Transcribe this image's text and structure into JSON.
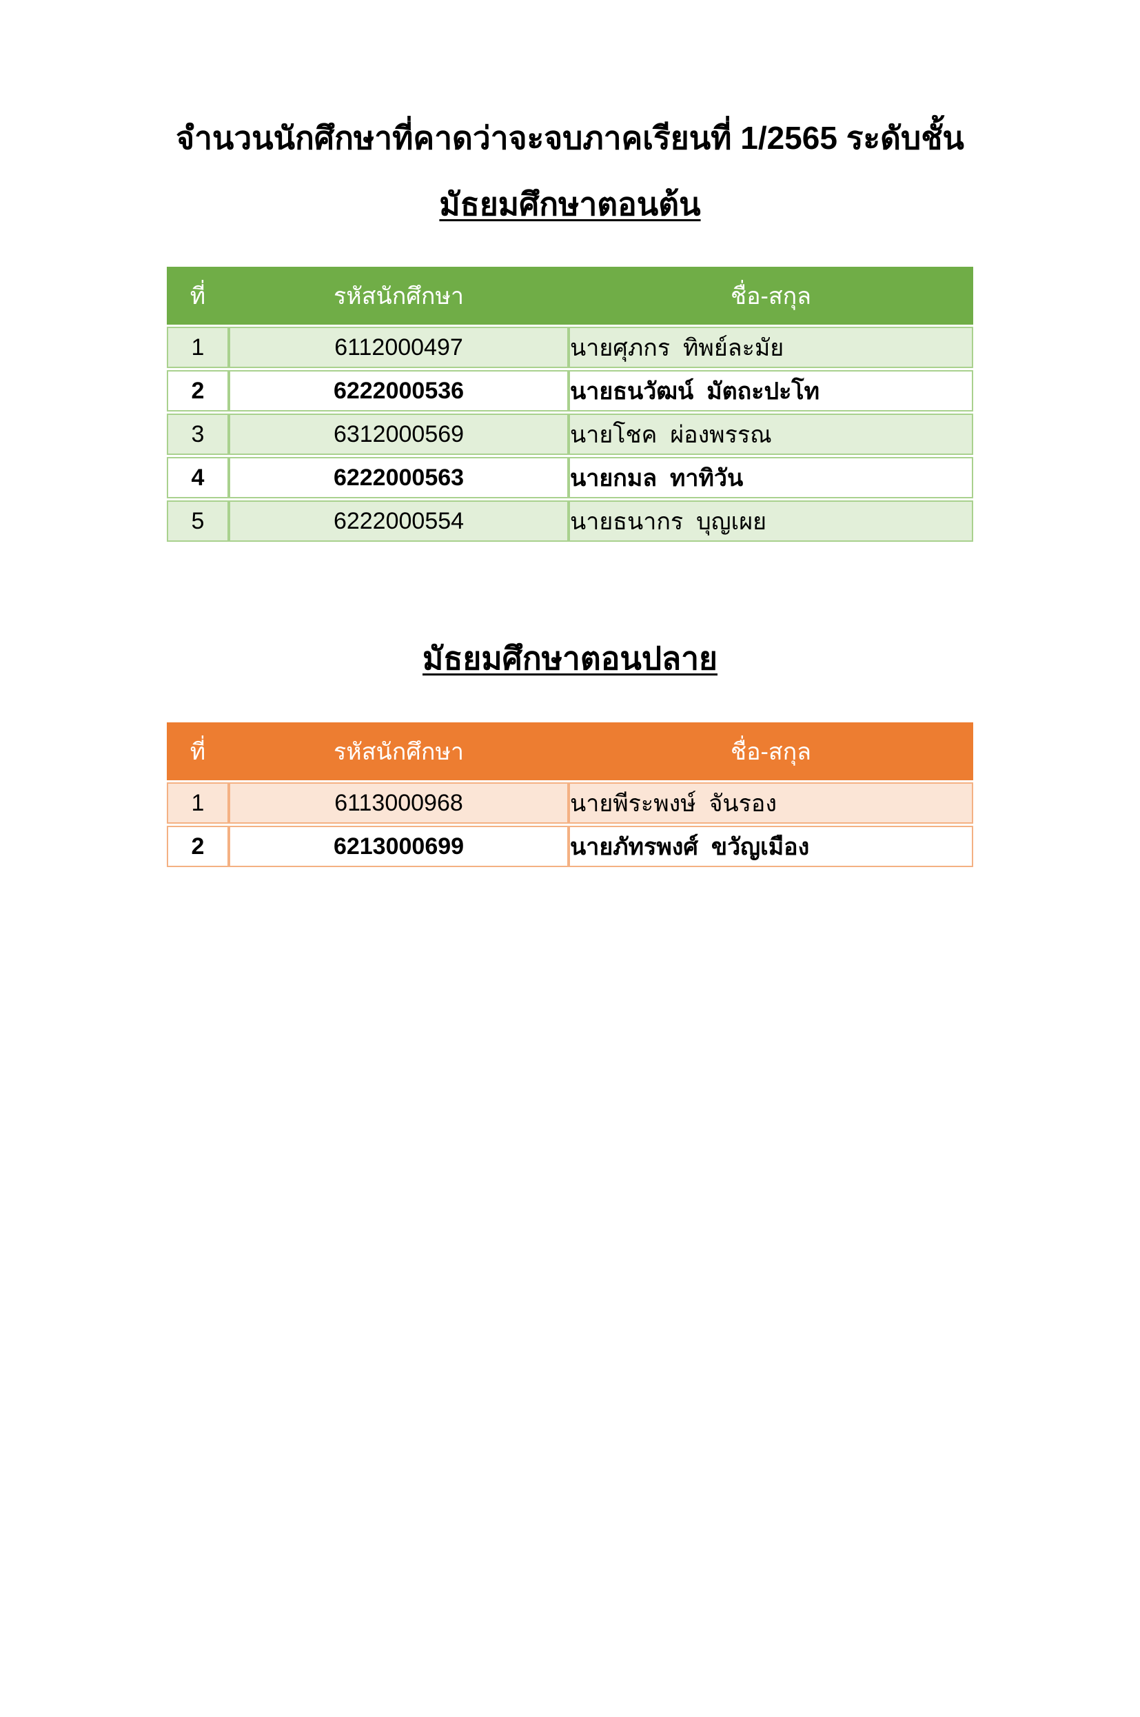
{
  "page": {
    "title_line1": "จำนวนนักศึกษาที่คาดว่าจะจบภาคเรียนที่ 1/2565 ระดับชั้น",
    "title_line2": "มัธยมศึกษาตอนต้น",
    "section2_title": "มัธยมศึกษาตอนปลาย"
  },
  "colors": {
    "table1_header": "#70AD47",
    "table1_band": "#E2EFD9",
    "table1_border": "#A9D18E",
    "table2_header": "#ED7D31",
    "table2_band": "#FBE5D6",
    "table2_border": "#F4B183",
    "header_text": "#FFFFFF"
  },
  "tables": [
    {
      "name": "lower-secondary",
      "headers": [
        "ที่",
        "รหัสนักศึกษา",
        "ชื่อ-สกุล"
      ],
      "rows": [
        {
          "no": "1",
          "id": "6112000497",
          "name": "นายศุภกร  ทิพย์ละมัย"
        },
        {
          "no": "2",
          "id": "6222000536",
          "name": "นายธนวัฒน์  มัตถะปะโท"
        },
        {
          "no": "3",
          "id": "6312000569",
          "name": "นายโชค  ผ่องพรรณ"
        },
        {
          "no": "4",
          "id": "6222000563",
          "name": "นายกมล  ทาทิวัน"
        },
        {
          "no": "5",
          "id": "6222000554",
          "name": "นายธนากร  บุญเผย"
        }
      ]
    },
    {
      "name": "upper-secondary",
      "headers": [
        "ที่",
        "รหัสนักศึกษา",
        "ชื่อ-สกุล"
      ],
      "rows": [
        {
          "no": "1",
          "id": "6113000968",
          "name": "นายพีระพงษ์  จันรอง"
        },
        {
          "no": "2",
          "id": "6213000699",
          "name": "นายภัทรพงศ์  ขวัญเมือง"
        }
      ]
    }
  ]
}
